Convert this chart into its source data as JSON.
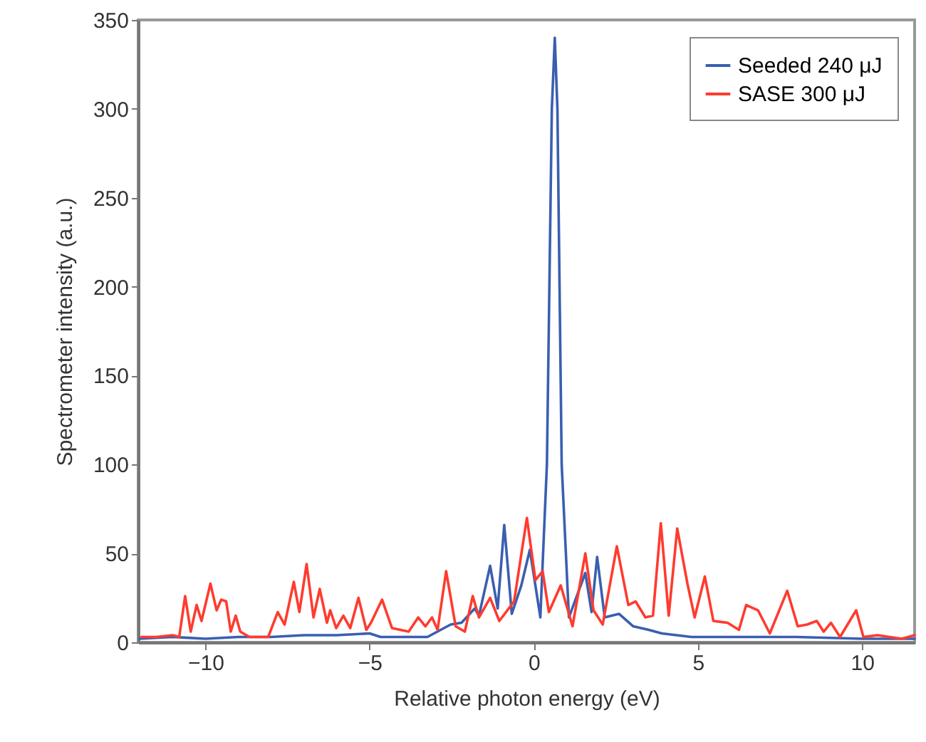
{
  "chart_data": {
    "type": "line",
    "xlabel": "Relative photon energy (eV)",
    "ylabel": "Spectrometer intensity (a.u.)",
    "xlim": [
      -12.05,
      11.6
    ],
    "xticks": [
      {
        "value": -10,
        "label": "−10"
      },
      {
        "value": -5,
        "label": "−5"
      },
      0,
      5,
      10
    ],
    "ylim": [
      0,
      350
    ],
    "yticks": [
      0,
      50,
      100,
      150,
      200,
      250,
      300,
      350
    ],
    "grid": false,
    "legend": "top right",
    "marker": "none",
    "line_style": "solid",
    "series": [
      {
        "name": "Seeded 240 μJ",
        "color": "#3a5fb0",
        "x": [
          -12.0,
          -11.0,
          -10.0,
          -9.0,
          -8.0,
          -7.0,
          -6.0,
          -5.0,
          -4.67,
          -3.24,
          -2.53,
          -2.2,
          -1.8,
          -1.67,
          -1.33,
          -1.1,
          -0.9,
          -0.67,
          -0.38,
          -0.12,
          0.2,
          0.4,
          0.55,
          0.64,
          0.72,
          0.85,
          1.07,
          1.57,
          1.76,
          1.93,
          2.16,
          2.6,
          3.03,
          3.5,
          3.9,
          4.8,
          6.0,
          8.0,
          10.0,
          11.6
        ],
        "values": [
          2,
          3,
          2,
          3,
          3,
          4,
          4,
          5,
          3,
          3,
          10,
          11,
          19,
          15,
          43,
          19,
          66,
          16,
          32,
          52,
          14,
          100,
          300,
          340,
          300,
          100,
          14,
          39,
          17,
          48,
          14,
          16,
          9,
          7,
          5,
          3,
          3,
          3,
          2,
          2
        ]
      },
      {
        "name": "SASE 300 μJ",
        "color": "#ff3b2f",
        "x": [
          -11.95,
          -11.5,
          -11.0,
          -10.8,
          -10.62,
          -10.45,
          -10.27,
          -10.12,
          -9.85,
          -9.66,
          -9.52,
          -9.37,
          -9.23,
          -9.08,
          -8.94,
          -8.66,
          -8.09,
          -7.8,
          -7.59,
          -7.31,
          -7.14,
          -6.92,
          -6.71,
          -6.52,
          -6.3,
          -6.2,
          -6.02,
          -5.8,
          -5.59,
          -5.34,
          -5.1,
          -4.96,
          -4.62,
          -4.32,
          -3.81,
          -3.52,
          -3.3,
          -3.1,
          -2.93,
          -2.67,
          -2.38,
          -2.1,
          -1.86,
          -1.67,
          -1.33,
          -1.05,
          -0.6,
          -0.21,
          0.05,
          0.27,
          0.46,
          0.82,
          1.18,
          1.57,
          1.82,
          2.1,
          2.53,
          2.88,
          3.1,
          3.4,
          3.63,
          3.87,
          4.11,
          4.37,
          4.68,
          4.9,
          5.21,
          5.47,
          5.9,
          6.25,
          6.47,
          6.83,
          7.19,
          7.72,
          8.04,
          8.33,
          8.62,
          8.83,
          9.05,
          9.33,
          9.82,
          10.04,
          10.47,
          11.2,
          11.6
        ],
        "values": [
          3,
          3,
          4,
          3,
          26,
          6,
          21,
          12,
          33,
          18,
          24,
          23,
          6,
          15,
          6,
          3,
          3,
          17,
          10,
          34,
          17,
          44,
          14,
          30,
          11,
          18,
          8,
          15,
          8,
          25,
          7,
          11,
          24,
          8,
          6,
          14,
          9,
          14,
          7,
          40,
          9,
          6,
          26,
          14,
          25,
          12,
          23,
          70,
          35,
          40,
          17,
          32,
          9,
          50,
          18,
          10,
          54,
          21,
          23,
          14,
          15,
          67,
          15,
          64,
          33,
          14,
          37,
          12,
          11,
          7,
          21,
          18,
          5,
          29,
          9,
          10,
          12,
          6,
          11,
          3,
          18,
          3,
          4,
          2,
          4
        ]
      }
    ]
  }
}
